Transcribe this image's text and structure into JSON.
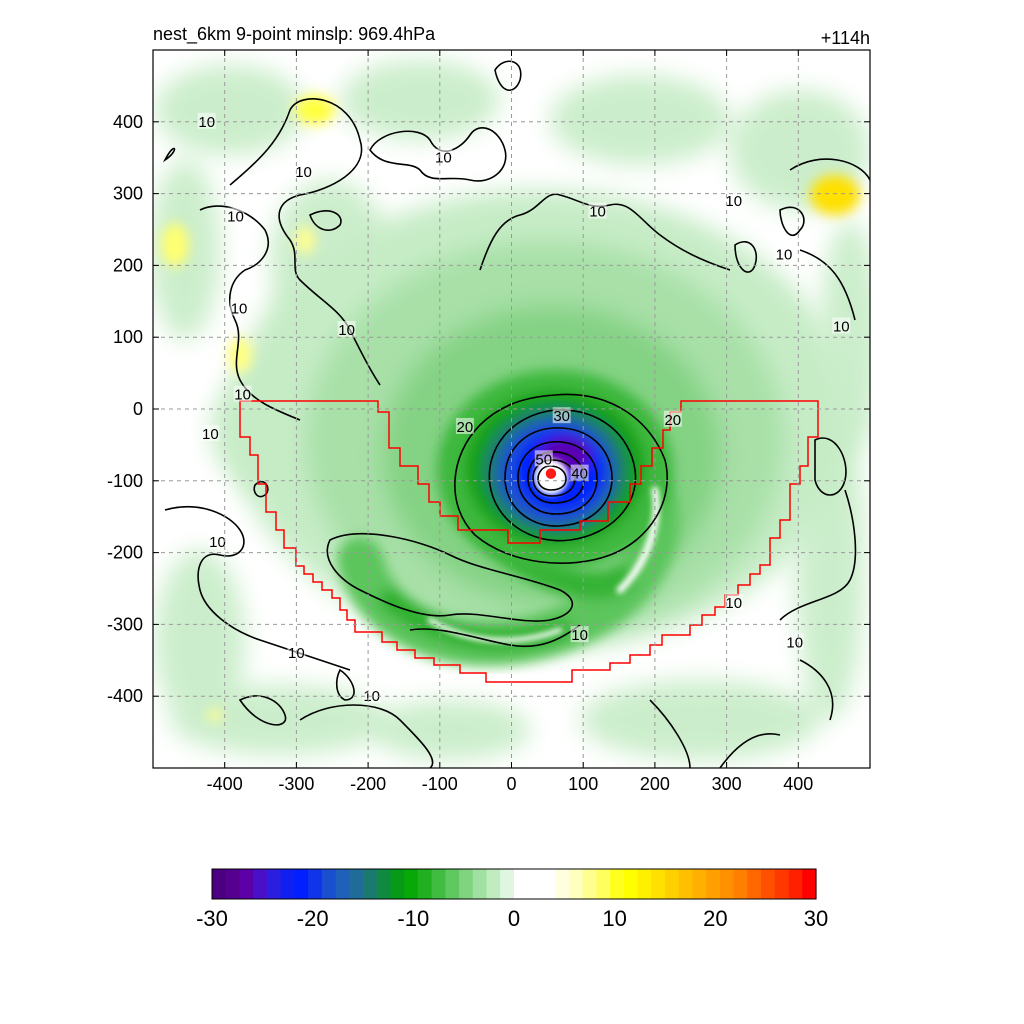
{
  "chart_data": {
    "type": "heatmap",
    "title_left": "nest_6km  9-point minslp: 969.4hPa",
    "title_right": "+114h",
    "xlabel": "",
    "ylabel": "",
    "xlim": [
      -500,
      500
    ],
    "ylim": [
      -500,
      500
    ],
    "x_ticks": [
      -400,
      -300,
      -200,
      -100,
      0,
      100,
      200,
      300,
      400
    ],
    "x_tick_labels": [
      "-400",
      "-300",
      "-200",
      "-100",
      "0",
      "100",
      "200",
      "300",
      "400"
    ],
    "y_ticks": [
      400,
      300,
      200,
      100,
      0,
      -100,
      -200,
      -300,
      -400
    ],
    "y_tick_labels": [
      "400",
      "300",
      "200",
      "100",
      "0",
      "-100",
      "-200",
      "-300",
      "-400"
    ],
    "grid": true,
    "storm_center": [
      55,
      -90
    ],
    "colorbar": {
      "range": [
        -30,
        30
      ],
      "ticks": [
        -30,
        -20,
        -10,
        0,
        10,
        20,
        30
      ],
      "tick_labels": [
        "-30",
        "-20",
        "-10",
        "0",
        "10",
        "20",
        "30"
      ],
      "colors": [
        "#4b0082",
        "#55008f",
        "#5c00a8",
        "#4a10c8",
        "#2a1ee0",
        "#1020f0",
        "#0020ff",
        "#1035e8",
        "#1a4fd0",
        "#1f60b8",
        "#1f6c98",
        "#1a7a70",
        "#108a40",
        "#069a18",
        "#08a808",
        "#20b020",
        "#40bc40",
        "#60c860",
        "#80d480",
        "#a0e0a0",
        "#c0ecc0",
        "#e0f6e0",
        "#ffffff",
        "#ffffff",
        "#ffffff",
        "#ffffe0",
        "#ffffc0",
        "#ffff90",
        "#ffff60",
        "#ffff20",
        "#ffff00",
        "#fff000",
        "#ffe000",
        "#ffd000",
        "#ffc000",
        "#ffb000",
        "#ffa000",
        "#ff9000",
        "#ff8000",
        "#ff6800",
        "#ff5000",
        "#ff3800",
        "#ff2000",
        "#ff0000"
      ]
    },
    "contour_labels": [
      {
        "text": "10",
        "x": -425,
        "y": 400
      },
      {
        "text": "10",
        "x": -290,
        "y": 330
      },
      {
        "text": "10",
        "x": -385,
        "y": 268
      },
      {
        "text": "10",
        "x": -95,
        "y": 350
      },
      {
        "text": "10",
        "x": 120,
        "y": 275
      },
      {
        "text": "10",
        "x": 310,
        "y": 290
      },
      {
        "text": "10",
        "x": 380,
        "y": 215
      },
      {
        "text": "10",
        "x": 460,
        "y": 115
      },
      {
        "text": "10",
        "x": -230,
        "y": 110
      },
      {
        "text": "10",
        "x": -380,
        "y": 140
      },
      {
        "text": "10",
        "x": -375,
        "y": 20
      },
      {
        "text": "10",
        "x": -420,
        "y": -35
      },
      {
        "text": "10",
        "x": -410,
        "y": -185
      },
      {
        "text": "10",
        "x": -300,
        "y": -340
      },
      {
        "text": "10",
        "x": -195,
        "y": -400
      },
      {
        "text": "10",
        "x": 95,
        "y": -315
      },
      {
        "text": "10",
        "x": 310,
        "y": -270
      },
      {
        "text": "10",
        "x": 395,
        "y": -325
      },
      {
        "text": "20",
        "x": -65,
        "y": -25
      },
      {
        "text": "20",
        "x": 225,
        "y": -15
      },
      {
        "text": "30",
        "x": 70,
        "y": -10
      },
      {
        "text": "40",
        "x": 95,
        "y": -90
      },
      {
        "text": "50",
        "x": 45,
        "y": -70
      }
    ]
  }
}
